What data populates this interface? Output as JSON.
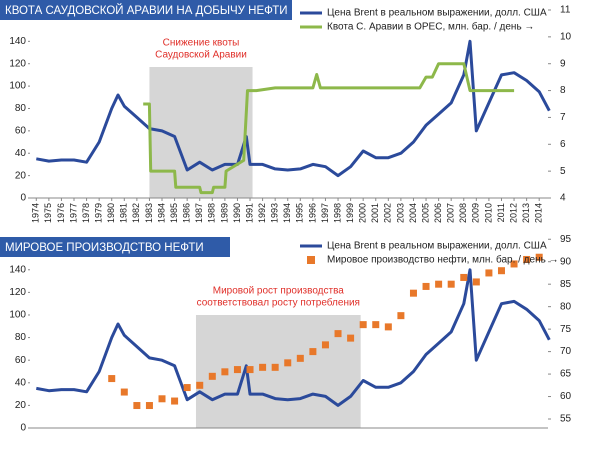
{
  "chart_data": [
    {
      "type": "line",
      "title": "КВОТА САУДОВСКОЙ АРАВИИ НА ДОБЫЧУ НЕФТИ",
      "annotation": [
        "Снижение квоты",
        "Саудовской Аравии"
      ],
      "highlight": [
        1983,
        1991.2
      ],
      "xlim": [
        1973.5,
        2014.7
      ],
      "xticks": [
        1974,
        1975,
        1976,
        1977,
        1978,
        1979,
        1980,
        1981,
        1982,
        1983,
        1984,
        1985,
        1986,
        1987,
        1988,
        1989,
        1990,
        1991,
        1992,
        1993,
        1994,
        1995,
        1996,
        1997,
        1998,
        1999,
        2000,
        2001,
        2002,
        2003,
        2004,
        2005,
        2006,
        2007,
        2008,
        2009,
        2010,
        2011,
        2012,
        2013,
        2014
      ],
      "ylim": [
        0,
        168
      ],
      "yticks": [
        0,
        20,
        40,
        60,
        80,
        100,
        120,
        140
      ],
      "y2lim": [
        4,
        11
      ],
      "y2ticks": [
        4,
        5,
        6,
        7,
        8,
        9,
        10,
        11
      ],
      "series": [
        {
          "name": "Цена Brent в реальном выражении, долл. США",
          "color": "#2b4a9b",
          "type": "line",
          "x": [
            1974,
            1975,
            1976,
            1977,
            1978,
            1979,
            1980,
            1980.5,
            1981,
            1982,
            1983,
            1984,
            1985,
            1986,
            1987,
            1988,
            1989,
            1990,
            1990.7,
            1991,
            1992,
            1993,
            1994,
            1995,
            1996,
            1997,
            1998,
            1999,
            2000,
            2001,
            2002,
            2003,
            2004,
            2005,
            2006,
            2007,
            2008,
            2008.5,
            2009,
            2010,
            2011,
            2012,
            2013,
            2014,
            2014.8
          ],
          "values": [
            35,
            33,
            34,
            34,
            32,
            50,
            80,
            92,
            82,
            72,
            62,
            60,
            55,
            25,
            32,
            25,
            30,
            30,
            55,
            30,
            30,
            26,
            25,
            26,
            30,
            28,
            20,
            28,
            42,
            36,
            36,
            40,
            50,
            65,
            75,
            85,
            110,
            140,
            60,
            85,
            110,
            112,
            105,
            95,
            78
          ]
        },
        {
          "name": "Квота С. Аравии в ОРЕС, млн. бар. / день →",
          "color": "#8db84a",
          "type": "line",
          "axis": "y2",
          "x": [
            1982.5,
            1983,
            1983.1,
            1985,
            1985.1,
            1987,
            1987.1,
            1988,
            1988.1,
            1989,
            1989.1,
            1990.5,
            1990.8,
            1991.5,
            1993,
            1996,
            1996.3,
            1996.6,
            2004.5,
            2005,
            2005.5,
            2006,
            2008,
            2008.5,
            2012
          ],
          "values": [
            7.5,
            7.5,
            5,
            5,
            4.4,
            4.4,
            4.2,
            4.2,
            4.4,
            4.4,
            5,
            5.4,
            8,
            8,
            8.1,
            8.1,
            8.6,
            8.1,
            8.1,
            8.5,
            8.5,
            9,
            9,
            8,
            8
          ]
        }
      ]
    },
    {
      "type": "line",
      "title": "МИРОВОЕ ПРОИЗВОДСТВО НЕФТИ",
      "annotation": [
        "Мировой рост производства",
        "соответствовал росту потребления"
      ],
      "highlight": [
        1986.7,
        1999.8
      ],
      "xlim": [
        1973.5,
        2014.7
      ],
      "ylim": [
        0,
        169
      ],
      "yticks": [
        0,
        20,
        40,
        60,
        80,
        100,
        120,
        140
      ],
      "y2lim": [
        53,
        95.5
      ],
      "y2ticks": [
        55,
        60,
        65,
        70,
        75,
        80,
        85,
        90,
        95
      ],
      "series": [
        {
          "name": "Цена Brent в реальном выражении, долл. США",
          "color": "#2b4a9b",
          "type": "line",
          "x": [
            1974,
            1975,
            1976,
            1977,
            1978,
            1979,
            1980,
            1980.5,
            1981,
            1982,
            1983,
            1984,
            1985,
            1986,
            1987,
            1988,
            1989,
            1990,
            1990.7,
            1991,
            1992,
            1993,
            1994,
            1995,
            1996,
            1997,
            1998,
            1999,
            2000,
            2001,
            2002,
            2003,
            2004,
            2005,
            2006,
            2007,
            2008,
            2008.5,
            2009,
            2010,
            2011,
            2012,
            2013,
            2014,
            2014.8
          ],
          "values": [
            35,
            33,
            34,
            34,
            32,
            50,
            80,
            92,
            82,
            72,
            62,
            60,
            55,
            25,
            32,
            25,
            30,
            30,
            55,
            30,
            30,
            26,
            25,
            26,
            30,
            28,
            20,
            28,
            42,
            36,
            36,
            40,
            50,
            65,
            75,
            85,
            110,
            140,
            60,
            85,
            110,
            112,
            105,
            95,
            78
          ]
        },
        {
          "name": "Мировое производство нефти, млн. бар. / день →",
          "color": "#e8782a",
          "type": "scatter",
          "axis": "y2",
          "x": [
            1980,
            1981,
            1982,
            1983,
            1984,
            1985,
            1986,
            1987,
            1988,
            1989,
            1990,
            1991,
            1992,
            1993,
            1994,
            1995,
            1996,
            1997,
            1998,
            1999,
            2000,
            2001,
            2002,
            2003,
            2004,
            2005,
            2006,
            2007,
            2008,
            2009,
            2010,
            2011,
            2012,
            2013,
            2014
          ],
          "values": [
            64,
            61,
            58,
            58,
            59.5,
            59,
            62,
            62.5,
            64.5,
            65.5,
            66,
            66,
            66.5,
            66.5,
            67.5,
            68.5,
            70,
            71.5,
            74,
            73,
            76,
            76,
            75.5,
            78,
            83,
            84.5,
            85,
            85,
            86.5,
            85.5,
            87.5,
            88,
            89.5,
            90.5,
            91
          ]
        }
      ]
    }
  ]
}
